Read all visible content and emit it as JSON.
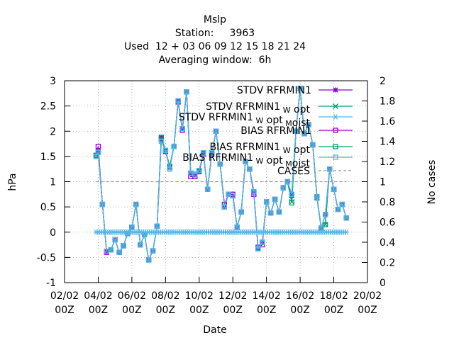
{
  "title": {
    "line1": "Mslp",
    "line2": "Station:     3963",
    "line3": "Used  12 + 03 06 09 12 15 18 21 24",
    "line4": "Averaging window:  6h"
  },
  "colors": {
    "stdv_rfrmin1": "#9400d3",
    "stdv_w_opt": "#009e73",
    "stdv_w_opt_m_oist": "#56b4e9",
    "bias_rfrmin1": "#9400d3",
    "bias_w_opt": "#009e73",
    "bias_w_opt_m_oist": "#56b4e9",
    "cases": "#999999"
  },
  "chart_data": {
    "type": "line",
    "xlabel": "Date",
    "ylabel": "hPa",
    "y2label": "No cases",
    "xlim_days": [
      2,
      20
    ],
    "ylim": [
      -1,
      3
    ],
    "y2lim": [
      0,
      2
    ],
    "grid": true,
    "legend_position": "top-right",
    "x_ticks": [
      {
        "line1": "02/02",
        "line2": "00Z"
      },
      {
        "line1": "04/02",
        "line2": "00Z"
      },
      {
        "line1": "06/02",
        "line2": "00Z"
      },
      {
        "line1": "08/02",
        "line2": "00Z"
      },
      {
        "line1": "10/02",
        "line2": "00Z"
      },
      {
        "line1": "12/02",
        "line2": "00Z"
      },
      {
        "line1": "14/02",
        "line2": "00Z"
      },
      {
        "line1": "16/02",
        "line2": "00Z"
      },
      {
        "line1": "18/02",
        "line2": "00Z"
      },
      {
        "line1": "20/02",
        "line2": "00Z"
      }
    ],
    "y_ticks": [
      "-1",
      "-0.5",
      "0",
      "0.5",
      "1",
      "1.5",
      "2",
      "2.5",
      "3"
    ],
    "y2_ticks": [
      "0",
      "0.2",
      "0.4",
      "0.6",
      "0.8",
      "1",
      "1.2",
      "1.4",
      "1.6",
      "1.8",
      "2"
    ],
    "legend": [
      {
        "main": "STDV RFRMIN1",
        "sub1": "",
        "mid": "",
        "sub2": "",
        "tail": ""
      },
      {
        "main": "STDV RFRMIN1",
        "sub1": "W",
        "mid": "opt",
        "sub2": "",
        "tail": ""
      },
      {
        "main": "STDV RFRMIN1",
        "sub1": "W",
        "mid": "opt",
        "sub2": "M",
        "tail": "oist"
      },
      {
        "main": "BIAS RFRMIN1",
        "sub1": "",
        "mid": "",
        "sub2": "",
        "tail": ""
      },
      {
        "main": "BIAS RFRMIN1",
        "sub1": "W",
        "mid": "opt",
        "sub2": "",
        "tail": ""
      },
      {
        "main": "BIAS RFRMIN1",
        "sub1": "W",
        "mid": "opt",
        "sub2": "M",
        "tail": "oist"
      },
      {
        "main": "CASES",
        "sub1": "",
        "mid": "",
        "sub2": "",
        "tail": ""
      }
    ],
    "x_days": [
      3.875,
      4.0,
      4.25,
      4.5,
      4.75,
      5.0,
      5.25,
      5.5,
      5.75,
      6.0,
      6.25,
      6.5,
      6.75,
      7.0,
      7.25,
      7.5,
      7.75,
      8.0,
      8.25,
      8.5,
      8.75,
      9.0,
      9.25,
      9.5,
      9.75,
      10.0,
      10.25,
      10.5,
      10.75,
      11.0,
      11.25,
      11.5,
      11.75,
      12.0,
      12.25,
      12.5,
      12.75,
      13.0,
      13.25,
      13.5,
      13.75,
      14.0,
      14.25,
      14.5,
      14.75,
      15.0,
      15.25,
      15.5,
      15.75,
      16.0,
      16.25,
      16.5,
      16.75,
      17.0,
      17.25,
      17.5,
      17.75,
      18.0,
      18.25,
      18.5,
      18.75
    ],
    "series": [
      {
        "key": "stdv_rfrmin1",
        "axis": "y",
        "marker": "star",
        "values": [
          1.52,
          1.58,
          0.55,
          -0.38,
          -0.35,
          -0.15,
          -0.4,
          -0.27,
          -0.03,
          0.1,
          0.55,
          -0.25,
          -0.05,
          -0.55,
          -0.37,
          0.12,
          1.87,
          1.6,
          1.28,
          1.7,
          2.58,
          2.05,
          2.78,
          1.15,
          1.13,
          1.2,
          1.55,
          0.85,
          1.55,
          2.0,
          1.35,
          0.5,
          0.75,
          0.72,
          0.1,
          0.4,
          1.4,
          1.25,
          0.78,
          -0.33,
          -0.2,
          0.6,
          0.38,
          0.65,
          0.4,
          0.88,
          1.0,
          0.75,
          2.0,
          2.85,
          1.95,
          2.13,
          1.73,
          0.7,
          0.08,
          0.35,
          1.25,
          0.85,
          0.45,
          0.55,
          0.28
        ]
      },
      {
        "key": "stdv_w_opt",
        "axis": "y",
        "marker": "x",
        "values": [
          1.52,
          1.6,
          0.55,
          -0.38,
          -0.35,
          -0.15,
          -0.4,
          -0.27,
          -0.03,
          0.1,
          0.55,
          -0.25,
          -0.05,
          -0.55,
          -0.37,
          0.12,
          1.88,
          1.62,
          1.3,
          1.7,
          2.6,
          2.05,
          2.78,
          1.17,
          1.15,
          1.22,
          1.57,
          0.85,
          1.57,
          2.0,
          1.35,
          0.5,
          0.75,
          0.72,
          0.1,
          0.4,
          1.4,
          1.25,
          0.8,
          -0.33,
          -0.2,
          0.6,
          0.38,
          0.65,
          0.4,
          0.88,
          1.0,
          0.6,
          2.0,
          2.85,
          1.95,
          2.13,
          1.73,
          0.68,
          0.08,
          0.15,
          1.25,
          0.85,
          0.45,
          0.55,
          0.28
        ]
      },
      {
        "key": "stdv_w_opt_m_oist",
        "axis": "y",
        "marker": "asterisk",
        "values": [
          1.5,
          1.58,
          0.55,
          -0.38,
          -0.35,
          -0.15,
          -0.4,
          -0.27,
          -0.03,
          0.1,
          0.55,
          -0.25,
          -0.05,
          -0.55,
          -0.37,
          0.12,
          1.8,
          1.62,
          1.25,
          1.7,
          2.6,
          2.05,
          2.78,
          1.17,
          1.15,
          1.22,
          1.57,
          0.85,
          1.57,
          2.0,
          1.35,
          0.5,
          0.75,
          0.72,
          0.1,
          0.4,
          1.4,
          1.25,
          0.8,
          -0.33,
          -0.2,
          0.6,
          0.38,
          0.65,
          0.4,
          0.88,
          1.0,
          0.75,
          2.0,
          2.85,
          1.95,
          2.13,
          1.73,
          0.7,
          0.08,
          0.35,
          1.25,
          0.85,
          0.45,
          0.55,
          0.28
        ]
      },
      {
        "key": "bias_rfrmin1",
        "axis": "y",
        "marker": "square",
        "values": [
          1.52,
          1.7,
          0.55,
          -0.4,
          -0.35,
          -0.15,
          -0.4,
          -0.27,
          -0.03,
          0.1,
          0.55,
          -0.25,
          -0.05,
          -0.55,
          -0.37,
          0.12,
          1.85,
          1.6,
          1.3,
          1.7,
          2.58,
          2.02,
          2.78,
          1.1,
          1.1,
          1.2,
          1.55,
          0.85,
          1.55,
          2.0,
          1.35,
          0.55,
          0.75,
          0.75,
          0.1,
          0.4,
          1.4,
          1.25,
          0.75,
          -0.3,
          -0.25,
          0.6,
          0.38,
          0.65,
          0.4,
          0.88,
          1.0,
          0.73,
          2.0,
          2.85,
          1.95,
          2.13,
          1.73,
          0.7,
          0.08,
          0.35,
          1.25,
          0.85,
          0.45,
          0.55,
          0.28
        ]
      },
      {
        "key": "bias_w_opt",
        "axis": "y",
        "marker": "square",
        "values": [
          1.52,
          1.6,
          0.55,
          -0.38,
          -0.35,
          -0.15,
          -0.4,
          -0.27,
          -0.03,
          0.1,
          0.55,
          -0.25,
          -0.05,
          -0.55,
          -0.37,
          0.12,
          1.88,
          1.62,
          1.3,
          1.7,
          2.6,
          2.05,
          2.78,
          1.17,
          1.15,
          1.22,
          1.57,
          0.85,
          1.57,
          2.0,
          1.35,
          0.5,
          0.75,
          0.72,
          0.1,
          0.4,
          1.4,
          1.25,
          0.8,
          -0.33,
          -0.2,
          0.6,
          0.38,
          0.65,
          0.4,
          0.88,
          1.0,
          0.58,
          2.0,
          2.85,
          1.95,
          2.13,
          1.73,
          0.68,
          0.08,
          0.15,
          1.25,
          0.85,
          0.45,
          0.55,
          0.28
        ]
      },
      {
        "key": "bias_w_opt_m_oist",
        "axis": "y",
        "marker": "square",
        "values": [
          1.5,
          1.58,
          0.55,
          -0.38,
          -0.35,
          -0.15,
          -0.4,
          -0.27,
          -0.03,
          0.1,
          0.55,
          -0.25,
          -0.05,
          -0.55,
          -0.37,
          0.12,
          1.8,
          1.62,
          1.25,
          1.7,
          2.6,
          2.05,
          2.78,
          1.17,
          1.15,
          1.22,
          1.57,
          0.85,
          1.57,
          2.0,
          1.35,
          0.5,
          0.75,
          0.72,
          0.1,
          0.4,
          1.4,
          1.25,
          0.8,
          -0.33,
          -0.2,
          0.6,
          0.38,
          0.65,
          0.4,
          0.88,
          1.0,
          0.75,
          2.0,
          2.85,
          1.95,
          2.13,
          1.73,
          0.7,
          0.08,
          0.35,
          1.25,
          0.85,
          0.45,
          0.55,
          0.28
        ]
      },
      {
        "key": "cases",
        "axis": "y2",
        "marker": "none",
        "values": [
          1,
          1,
          1,
          1,
          1,
          1,
          1,
          1,
          1,
          1,
          1,
          1,
          1,
          1,
          1,
          1,
          1,
          1,
          1,
          1,
          1,
          1,
          1,
          1,
          1,
          1,
          1,
          1,
          1,
          1,
          1,
          1,
          1,
          1,
          1,
          1,
          1,
          1,
          1,
          1,
          1,
          1,
          1,
          1,
          1,
          1,
          1,
          1,
          1,
          1,
          1,
          1,
          1,
          1,
          1,
          1,
          1,
          1,
          1,
          1,
          1
        ]
      }
    ],
    "flat_zero_series": {
      "marker": "asterisk",
      "value": 0
    }
  }
}
